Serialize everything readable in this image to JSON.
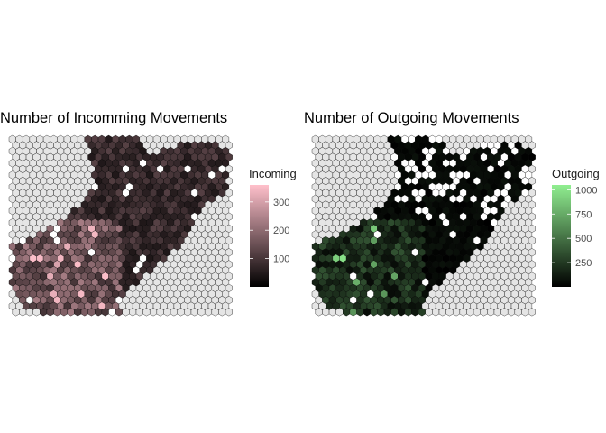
{
  "chart_data": [
    {
      "type": "heatmap",
      "subtype": "hexbin-map",
      "title": "Number of Incomming Movements",
      "xlabel": "",
      "ylabel": "",
      "grid": false,
      "empty_cell_color": "#e5e5e5",
      "cell_border_color": "#000000",
      "legend": {
        "title": "Incoming",
        "placement": "right",
        "ticks": [
          100,
          200,
          300
        ],
        "range": [
          0,
          360
        ],
        "color_low": "#000000",
        "color_high": "#ffc0cb"
      },
      "value_summary": {
        "high_value_region": "southwest lobe",
        "typical_range": [
          30,
          220
        ],
        "max_approx": 350
      }
    },
    {
      "type": "heatmap",
      "subtype": "hexbin-map",
      "title": "Number of Outgoing Movements",
      "xlabel": "",
      "ylabel": "",
      "grid": false,
      "empty_cell_color": "#e5e5e5",
      "cell_border_color": "#000000",
      "legend": {
        "title": "Outgoing",
        "placement": "right",
        "ticks": [
          250,
          500,
          750,
          1000
        ],
        "range": [
          0,
          1050
        ],
        "color_low": "#000000",
        "color_high": "#90ee90"
      },
      "value_summary": {
        "high_value_region": "southwest lobe",
        "typical_range": [
          0,
          300
        ],
        "max_approx": 1000
      }
    }
  ]
}
